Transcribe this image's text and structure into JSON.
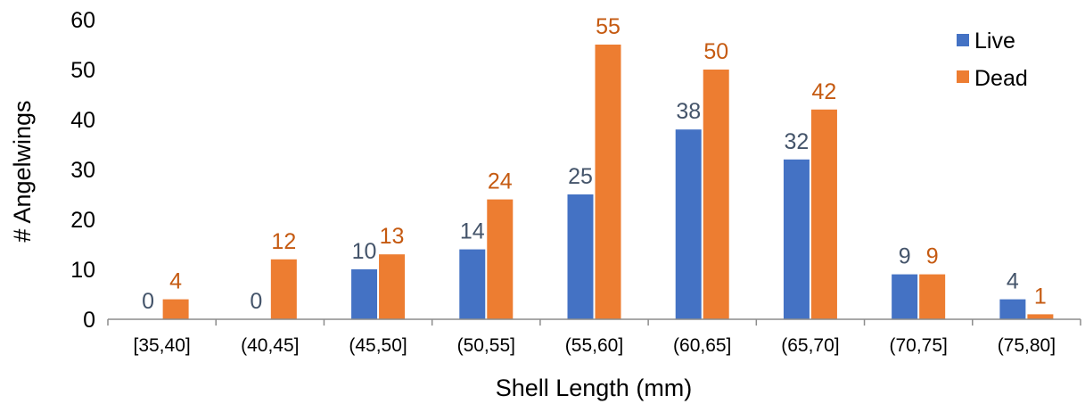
{
  "chart_data": {
    "type": "bar",
    "xlabel": "Shell Length (mm)",
    "ylabel": "# Angelwings",
    "ylim": [
      0,
      60
    ],
    "yticks": [
      0,
      10,
      20,
      30,
      40,
      50,
      60
    ],
    "grid": false,
    "legend_position": "top-right",
    "categories": [
      "[35,40]",
      "(40,45]",
      "(45,50]",
      "(50,55]",
      "(55,60]",
      "(60,65]",
      "(65,70]",
      "(70,75]",
      "(75,80]"
    ],
    "series": [
      {
        "name": "Live",
        "color": "#4472C4",
        "label_color": "#44546A",
        "values": [
          0,
          0,
          10,
          14,
          25,
          38,
          32,
          9,
          4
        ]
      },
      {
        "name": "Dead",
        "color": "#ED7D31",
        "label_color": "#C55A11",
        "values": [
          4,
          12,
          13,
          24,
          55,
          50,
          42,
          9,
          1
        ]
      }
    ]
  }
}
